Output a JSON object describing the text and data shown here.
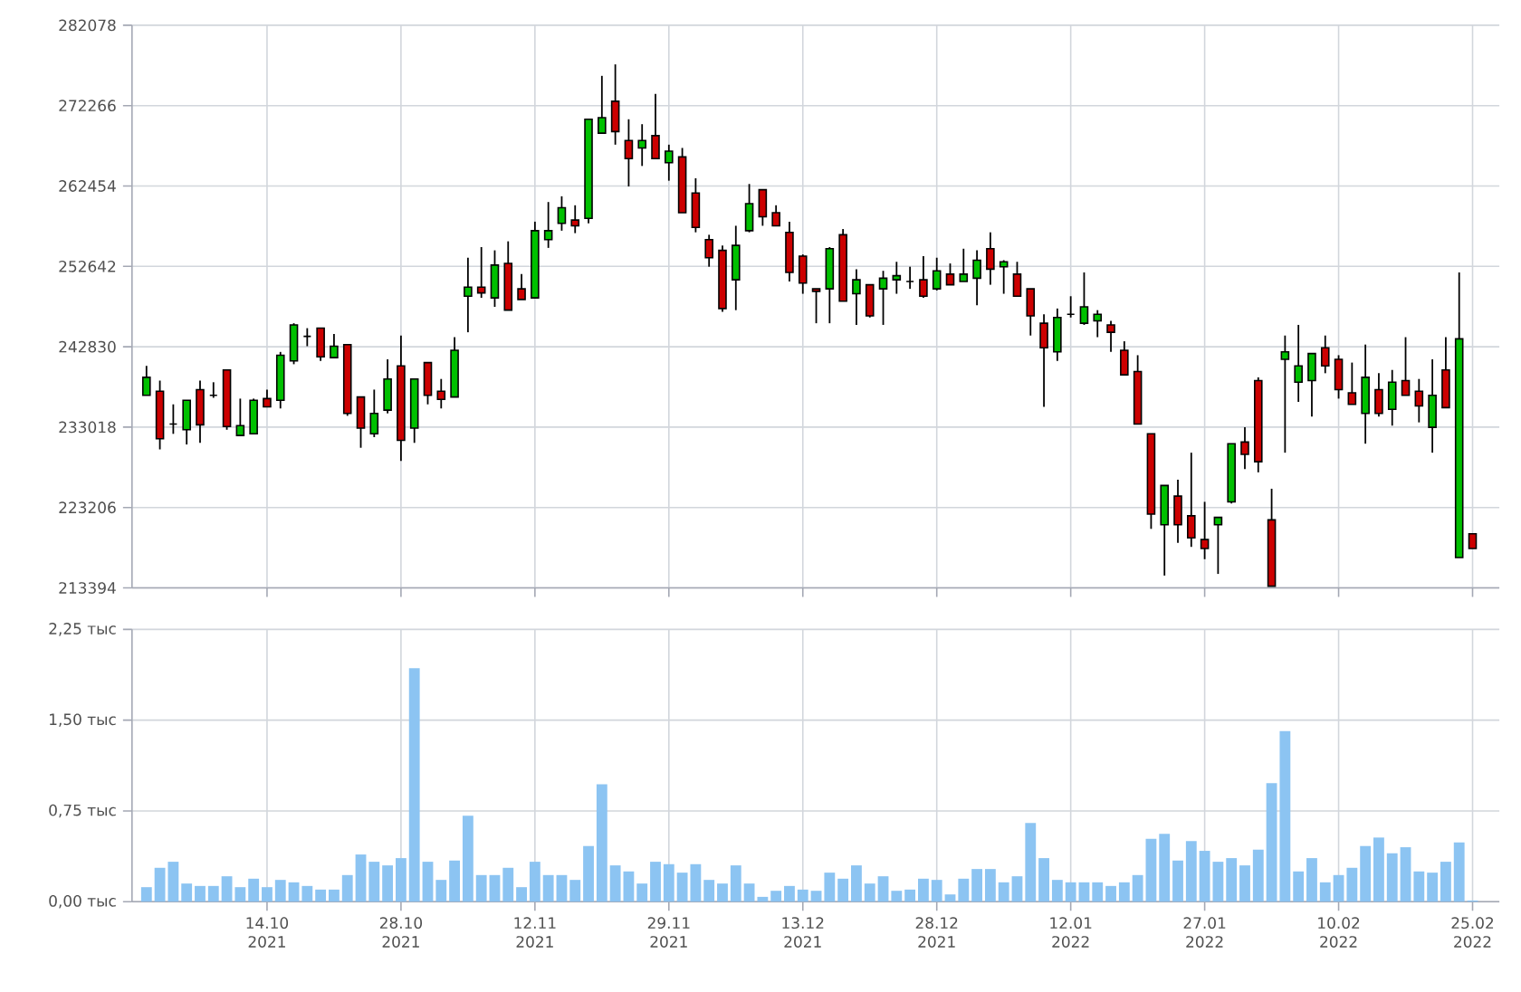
{
  "chart_data": [
    {
      "type": "candlestick",
      "categories": [
        null,
        null,
        null,
        null,
        null,
        null,
        null,
        null,
        null,
        null,
        null,
        null,
        null,
        null,
        null,
        null,
        null,
        null,
        null,
        null,
        null,
        null,
        null,
        null,
        null,
        null,
        null,
        null,
        null,
        null,
        null,
        null,
        null,
        null,
        null,
        null,
        null,
        null,
        null,
        null,
        null,
        null,
        null,
        null,
        null,
        null,
        null,
        null,
        null,
        null,
        null,
        null,
        null,
        null,
        null,
        null,
        null,
        null,
        null,
        null,
        null,
        null,
        null,
        null,
        null,
        null,
        null,
        null,
        null,
        null,
        null,
        null,
        null,
        null,
        null,
        null,
        null,
        null,
        null,
        null,
        null,
        null,
        null,
        null,
        null,
        null,
        null,
        null,
        null,
        null,
        null,
        null,
        null,
        null,
        null,
        null,
        null,
        null,
        null,
        null
      ],
      "ohlc": [
        [
          236900,
          240500,
          236900,
          239100
        ],
        [
          237400,
          238700,
          230300,
          231600
        ],
        [
          233400,
          235800,
          232200,
          233400
        ],
        [
          232700,
          236300,
          230900,
          236300
        ],
        [
          237600,
          238700,
          231100,
          233300
        ],
        [
          236900,
          238500,
          236600,
          236900
        ],
        [
          240000,
          240000,
          232700,
          233100
        ],
        [
          232000,
          236500,
          232000,
          233200
        ],
        [
          232200,
          236500,
          232200,
          236300
        ],
        [
          236500,
          237600,
          235500,
          235500
        ],
        [
          236300,
          242200,
          235300,
          241800
        ],
        [
          241100,
          245700,
          240700,
          245500
        ],
        [
          244100,
          245100,
          242900,
          244100
        ],
        [
          245100,
          245100,
          241100,
          241600
        ],
        [
          241500,
          244400,
          241500,
          242900
        ],
        [
          243100,
          243100,
          234400,
          234700
        ],
        [
          236700,
          236700,
          230500,
          232900
        ],
        [
          232200,
          237600,
          231800,
          234700
        ],
        [
          235100,
          241300,
          234700,
          238900
        ],
        [
          240500,
          244200,
          228900,
          231400
        ],
        [
          232900,
          238900,
          231100,
          238900
        ],
        [
          240900,
          240900,
          235800,
          236900
        ],
        [
          237400,
          238900,
          235300,
          236400
        ],
        [
          236700,
          244000,
          236700,
          242400
        ],
        [
          249000,
          253700,
          244600,
          250100
        ],
        [
          250100,
          255000,
          248800,
          249400
        ],
        [
          248800,
          254600,
          247700,
          252800
        ],
        [
          253000,
          255700,
          247300,
          247300
        ],
        [
          249900,
          251700,
          248600,
          248600
        ],
        [
          248800,
          258100,
          248800,
          257000
        ],
        [
          255900,
          260500,
          254900,
          257000
        ],
        [
          257900,
          261200,
          257000,
          259800
        ],
        [
          258300,
          260100,
          256700,
          257600
        ],
        [
          258500,
          270600,
          257900,
          270600
        ],
        [
          268900,
          275900,
          268900,
          270800
        ],
        [
          272800,
          277300,
          267500,
          269100
        ],
        [
          268000,
          270600,
          262400,
          265800
        ],
        [
          267100,
          270000,
          264900,
          268000
        ],
        [
          268600,
          273700,
          265800,
          265800
        ],
        [
          265300,
          267500,
          263100,
          266700
        ],
        [
          266000,
          267100,
          259200,
          259200
        ],
        [
          261600,
          263400,
          256800,
          257400
        ],
        [
          255900,
          256500,
          252600,
          253700
        ],
        [
          254600,
          255200,
          247100,
          247500
        ],
        [
          251000,
          257600,
          247300,
          255200
        ],
        [
          257000,
          262700,
          256800,
          260300
        ],
        [
          262000,
          262000,
          257600,
          258700
        ],
        [
          259200,
          260100,
          257600,
          257600
        ],
        [
          256800,
          258100,
          250800,
          251900
        ],
        [
          253900,
          254100,
          249300,
          250600
        ],
        [
          249900,
          249900,
          245700,
          249600
        ],
        [
          249900,
          255000,
          245700,
          254800
        ],
        [
          256500,
          257200,
          248400,
          248400
        ],
        [
          249300,
          252300,
          245500,
          251000
        ],
        [
          250400,
          250400,
          246400,
          246600
        ],
        [
          249900,
          252100,
          245500,
          251200
        ],
        [
          251000,
          253200,
          249300,
          251500
        ],
        [
          250800,
          252600,
          249900,
          250800
        ],
        [
          251000,
          253900,
          248800,
          249000
        ],
        [
          249900,
          253700,
          249700,
          252100
        ],
        [
          251700,
          253000,
          250400,
          250400
        ],
        [
          250800,
          254800,
          250800,
          251700
        ],
        [
          251200,
          254600,
          247900,
          253400
        ],
        [
          254800,
          256800,
          250400,
          252300
        ],
        [
          252600,
          253400,
          249300,
          253200
        ],
        [
          251700,
          253200,
          249000,
          249000
        ],
        [
          249900,
          249900,
          244200,
          246600
        ],
        [
          245700,
          246800,
          235500,
          242700
        ],
        [
          242200,
          247500,
          241100,
          246400
        ],
        [
          246800,
          249000,
          246400,
          246800
        ],
        [
          245700,
          251900,
          245500,
          247700
        ],
        [
          246000,
          247300,
          244000,
          246800
        ],
        [
          245500,
          246000,
          242200,
          244600
        ],
        [
          242400,
          243500,
          239400,
          239400
        ],
        [
          239800,
          241800,
          233400,
          233400
        ],
        [
          232200,
          232200,
          220600,
          222400
        ],
        [
          221100,
          225900,
          214900,
          225900
        ],
        [
          224600,
          226600,
          218900,
          221100
        ],
        [
          222200,
          229900,
          218400,
          219500
        ],
        [
          219300,
          223900,
          216900,
          218200
        ],
        [
          221100,
          222000,
          215100,
          222000
        ],
        [
          223900,
          231000,
          223700,
          231000
        ],
        [
          231200,
          233000,
          227900,
          229700
        ],
        [
          238700,
          239100,
          227500,
          228800
        ],
        [
          221700,
          225500,
          213600,
          213600
        ],
        [
          241300,
          244200,
          229900,
          242200
        ],
        [
          238500,
          245500,
          236100,
          240500
        ],
        [
          238700,
          242000,
          234300,
          242000
        ],
        [
          242700,
          244200,
          239600,
          240500
        ],
        [
          241300,
          241800,
          236500,
          237600
        ],
        [
          237200,
          240900,
          235800,
          235800
        ],
        [
          234700,
          243100,
          231000,
          239100
        ],
        [
          237600,
          239600,
          234300,
          234700
        ],
        [
          235200,
          240000,
          233200,
          238500
        ],
        [
          238700,
          244000,
          236900,
          236900
        ],
        [
          237400,
          238900,
          233600,
          235600
        ],
        [
          233000,
          241300,
          229900,
          236900
        ],
        [
          240000,
          244000,
          235400,
          235400
        ],
        [
          217100,
          251900,
          217100,
          243800
        ],
        [
          220000,
          220000,
          218200,
          218200
        ]
      ],
      "ylim": [
        213394,
        282078
      ],
      "yticks": [
        213394,
        223206,
        233018,
        242830,
        252642,
        262454,
        272266,
        282078
      ],
      "grid": true,
      "tick_labels": "y"
    },
    {
      "type": "bar",
      "categories": [
        null,
        null,
        null,
        null,
        null,
        null,
        null,
        null,
        null,
        "14.10 2021",
        null,
        null,
        null,
        null,
        null,
        null,
        null,
        null,
        null,
        "28.10 2021",
        null,
        null,
        null,
        null,
        null,
        null,
        null,
        null,
        null,
        "12.11 2021",
        null,
        null,
        null,
        null,
        null,
        null,
        null,
        null,
        null,
        "29.11 2021",
        null,
        null,
        null,
        null,
        null,
        null,
        null,
        null,
        null,
        "13.12 2021",
        null,
        null,
        null,
        null,
        null,
        null,
        null,
        null,
        null,
        "28.12 2021",
        null,
        null,
        null,
        null,
        null,
        null,
        null,
        null,
        null,
        "12.01 2022",
        null,
        null,
        null,
        null,
        null,
        null,
        null,
        null,
        null,
        "27.01 2022",
        null,
        null,
        null,
        null,
        null,
        null,
        null,
        null,
        null,
        "10.02 2022",
        null,
        null,
        null,
        null,
        null,
        null,
        null,
        null,
        null,
        "25.02 2022"
      ],
      "values": [
        0.12,
        0.28,
        0.33,
        0.15,
        0.13,
        0.13,
        0.21,
        0.12,
        0.19,
        0.12,
        0.18,
        0.16,
        0.13,
        0.1,
        0.1,
        0.22,
        0.39,
        0.33,
        0.3,
        0.36,
        1.93,
        0.33,
        0.18,
        0.34,
        0.71,
        0.22,
        0.22,
        0.28,
        0.12,
        0.33,
        0.22,
        0.22,
        0.18,
        0.46,
        0.97,
        0.3,
        0.25,
        0.15,
        0.33,
        0.31,
        0.24,
        0.31,
        0.18,
        0.15,
        0.3,
        0.15,
        0.04,
        0.09,
        0.13,
        0.1,
        0.09,
        0.24,
        0.19,
        0.3,
        0.15,
        0.21,
        0.09,
        0.1,
        0.19,
        0.18,
        0.06,
        0.19,
        0.27,
        0.27,
        0.16,
        0.21,
        0.65,
        0.36,
        0.18,
        0.16,
        0.16,
        0.16,
        0.13,
        0.16,
        0.22,
        0.52,
        0.56,
        0.34,
        0.5,
        0.42,
        0.33,
        0.36,
        0.3,
        0.43,
        0.98,
        1.41,
        0.25,
        0.36,
        0.16,
        0.22,
        0.28,
        0.46,
        0.53,
        0.4,
        0.45,
        0.25,
        0.24,
        0.33,
        0.49,
        0.01
      ],
      "color": "#8cc4f2",
      "ylim": [
        0,
        2.25
      ],
      "yticks": [
        {
          "value": 0,
          "label": "0,00 тыс"
        },
        {
          "value": 0.75,
          "label": "0,75 тыс"
        },
        {
          "value": 1.5,
          "label": "1,50 тыс"
        },
        {
          "value": 2.25,
          "label": "2,25 тыс"
        }
      ],
      "grid": true
    }
  ]
}
